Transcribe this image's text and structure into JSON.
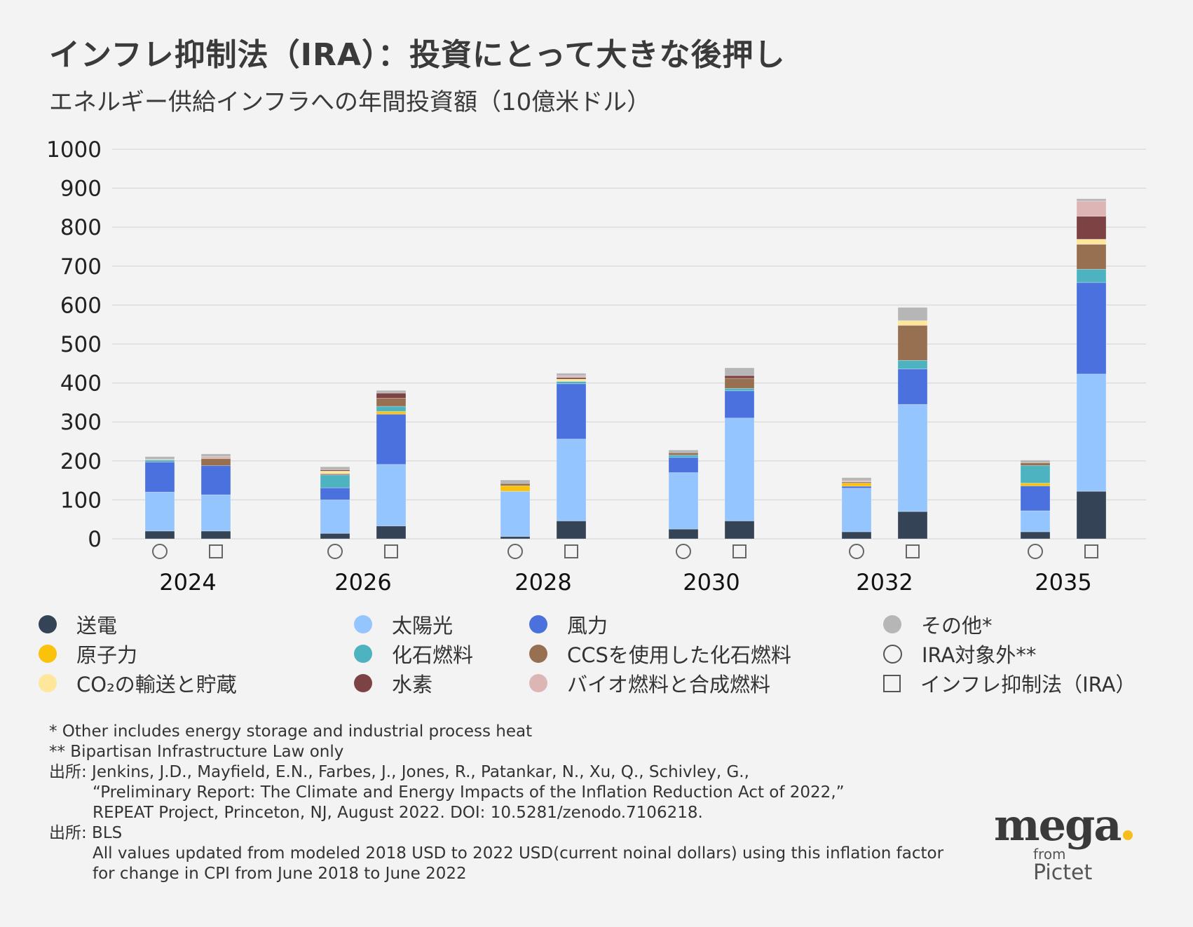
{
  "title": "インフレ抑制法（IRA）：投資にとって大きな後押し",
  "subtitle": "エネルギー供給インフラへの年間投資額（10億米ドル）",
  "chart_data": {
    "type": "bar",
    "stacked": true,
    "title": "インフレ抑制法（IRA）：投資にとって大きな後押し",
    "subtitle": "エネルギー供給インフラへの年間投資額（10億米ドル）",
    "xlabel": "",
    "ylabel": "",
    "ylim": [
      0,
      1000
    ],
    "yticks": [
      0,
      100,
      200,
      300,
      400,
      500,
      600,
      700,
      800,
      900,
      1000
    ],
    "grid": true,
    "legend_position": "bottom",
    "categories": [
      "2024",
      "2026",
      "2028",
      "2030",
      "2032",
      "2035"
    ],
    "scenarios": [
      {
        "key": "base",
        "label": "IRA対象外**",
        "marker": "circle"
      },
      {
        "key": "ira",
        "label": "インフレ抑制法（IRA）",
        "marker": "square"
      }
    ],
    "series": [
      {
        "name": "送電",
        "color": "#344456",
        "base": [
          20,
          14,
          6,
          25,
          18,
          18
        ],
        "ira": [
          20,
          33,
          46,
          46,
          70,
          122
        ]
      },
      {
        "name": "太陽光",
        "color": "#95c5fe",
        "base": [
          100,
          86,
          116,
          145,
          112,
          54
        ],
        "ira": [
          93,
          158,
          210,
          264,
          275,
          301
        ]
      },
      {
        "name": "風力",
        "color": "#4a71dd",
        "base": [
          77,
          31,
          0,
          39,
          5,
          64
        ],
        "ira": [
          75,
          129,
          142,
          70,
          91,
          235
        ]
      },
      {
        "name": "原子力",
        "color": "#fbc20b",
        "base": [
          0,
          0,
          14,
          0,
          8,
          7
        ],
        "ira": [
          0,
          7,
          0,
          0,
          0,
          0
        ]
      },
      {
        "name": "化石燃料",
        "color": "#4eb3c1",
        "base": [
          5,
          33,
          0,
          6,
          0,
          45
        ],
        "ira": [
          0,
          13,
          6,
          6,
          22,
          34
        ]
      },
      {
        "name": "CCSを使用した化石燃料",
        "color": "#976f51",
        "base": [
          0,
          3,
          6,
          6,
          3,
          7
        ],
        "ira": [
          18,
          21,
          0,
          26,
          90,
          64
        ]
      },
      {
        "name": "CO2の輸送と貯蔵",
        "color": "#fee69a",
        "base": [
          0,
          7,
          0,
          0,
          0,
          0
        ],
        "ira": [
          0,
          0,
          6,
          0,
          12,
          13
        ]
      },
      {
        "name": "水素",
        "color": "#7c4244",
        "base": [
          0,
          3,
          0,
          0,
          0,
          0
        ],
        "ira": [
          0,
          13,
          4,
          7,
          0,
          59
        ]
      },
      {
        "name": "バイオ燃料と合成燃料",
        "color": "#deb5b5",
        "base": [
          2,
          0,
          0,
          0,
          3,
          0
        ],
        "ira": [
          5,
          0,
          4,
          0,
          0,
          39
        ]
      },
      {
        "name": "その他*",
        "color": "#b6b6b6",
        "base": [
          7,
          8,
          9,
          7,
          8,
          7
        ],
        "ira": [
          7,
          7,
          7,
          20,
          34,
          6
        ]
      }
    ]
  },
  "legend": [
    {
      "label": "送電",
      "color": "#344456",
      "kind": "dot"
    },
    {
      "label": "原子力",
      "color": "#fbc20b",
      "kind": "dot"
    },
    {
      "label": "CO₂の輸送と貯蔵",
      "color": "#fee69a",
      "kind": "dot"
    },
    {
      "label": "太陽光",
      "color": "#95c5fe",
      "kind": "dot"
    },
    {
      "label": "化石燃料",
      "color": "#4eb3c1",
      "kind": "dot"
    },
    {
      "label": "水素",
      "color": "#7c4244",
      "kind": "dot"
    },
    {
      "label": "風力",
      "color": "#4a71dd",
      "kind": "dot"
    },
    {
      "label": "CCSを使用した化石燃料",
      "color": "#976f51",
      "kind": "dot"
    },
    {
      "label": "バイオ燃料と合成燃料",
      "color": "#deb5b5",
      "kind": "dot"
    },
    {
      "label": "その他*",
      "color": "#b6b6b6",
      "kind": "dot"
    },
    {
      "label": "IRA対象外**",
      "color": "#555555",
      "kind": "circle"
    },
    {
      "label": "インフレ抑制法（IRA）",
      "color": "#555555",
      "kind": "square"
    }
  ],
  "notes": {
    "line1": "* Other includes energy storage and industrial process heat",
    "line2": "** Bipartisan Infrastructure Law only",
    "line3": "出所: Jenkins, J.D., Mayfield, E.N., Farbes, J., Jones, R., Patankar, N., Xu, Q., Schivley, G.,",
    "line4": "“Preliminary Report: The Climate and Energy Impacts of the Inflation Reduction Act of 2022,”",
    "line5": "REPEAT Project, Princeton, NJ, August 2022. DOI: 10.5281/zenodo.7106218.",
    "line6": "出所: BLS",
    "line7": "All values updated from modeled 2018 USD to 2022 USD(current noinal dollars) using this inflation factor",
    "line8": "for change in CPI from June 2018 to June 2022"
  },
  "logo": {
    "brand": "mega",
    "from": "from",
    "company": "Pictet",
    "accent": "#f7bd1b"
  }
}
